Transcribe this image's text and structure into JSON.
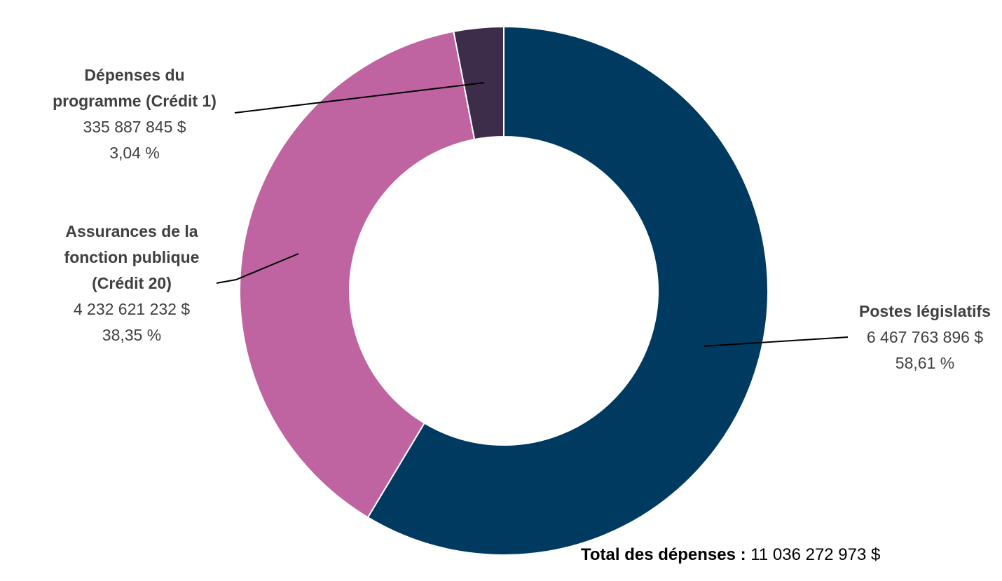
{
  "chart_data": {
    "type": "pie",
    "donut": true,
    "start_angle_deg": 0,
    "direction": "clockwise",
    "slices": [
      {
        "label_lines": [
          "Postes législatifs"
        ],
        "value_text": "6 467 763 896 $",
        "percent_text": "58,61 %",
        "value": 6467763896,
        "percent": 58.61,
        "color": "#003A60"
      },
      {
        "label_lines": [
          "Assurances de la",
          "fonction publique",
          "(Crédit 20)"
        ],
        "value_text": "4 232 621 232 $",
        "percent_text": "38,35 %",
        "value": 4232621232,
        "percent": 38.35,
        "color": "#BF64A0"
      },
      {
        "label_lines": [
          "Dépenses du",
          "programme (Crédit 1)"
        ],
        "value_text": "335 887 845 $",
        "percent_text": "3,04 %",
        "value": 335887845,
        "percent": 3.04,
        "color": "#3D2C4A"
      }
    ]
  },
  "total": {
    "label": "Total des dépenses :",
    "value": "11 036 272 973 $"
  }
}
